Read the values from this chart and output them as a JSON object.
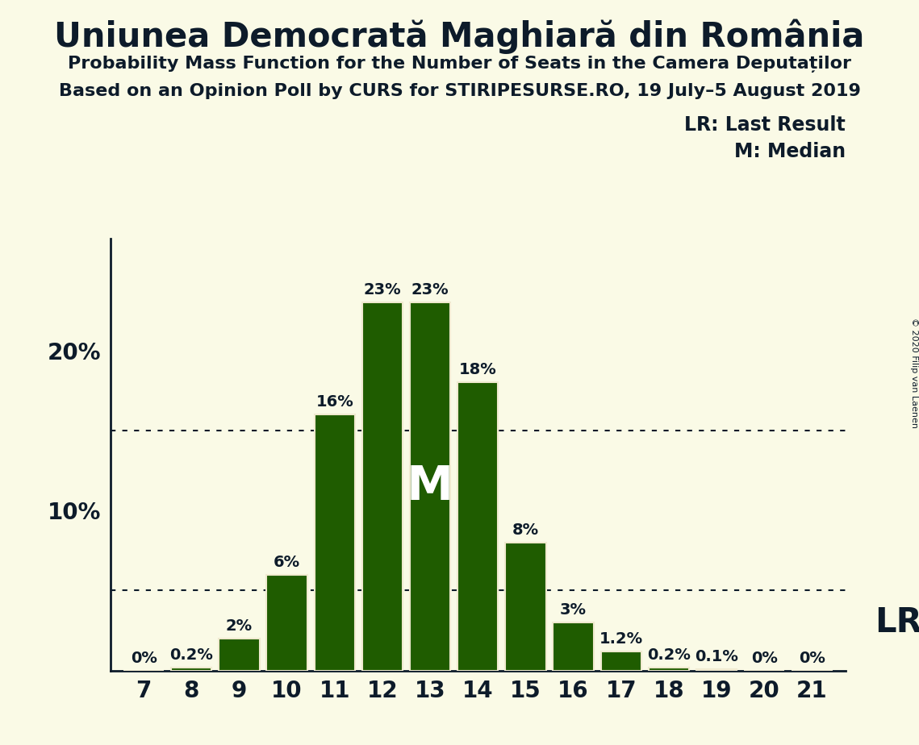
{
  "title": "Uniunea Democrată Maghiară din România",
  "subtitle1": "Probability Mass Function for the Number of Seats in the Camera Deputaților",
  "subtitle2": "Based on an Opinion Poll by CURS for STIRIPESURSE.RO, 19 July–5 August 2019",
  "copyright": "© 2020 Filip van Laenen",
  "seats": [
    7,
    8,
    9,
    10,
    11,
    12,
    13,
    14,
    15,
    16,
    17,
    18,
    19,
    20,
    21
  ],
  "probabilities": [
    0.0,
    0.2,
    2.0,
    6.0,
    16.0,
    23.0,
    23.0,
    18.0,
    8.0,
    3.0,
    1.2,
    0.2,
    0.1,
    0.0,
    0.0
  ],
  "bar_color": "#1f5c00",
  "bar_edge_color": "#f0ead0",
  "background_color": "#fafae6",
  "text_color": "#0d1b2a",
  "median_seat": 13,
  "median_label": "M",
  "lr_seat": 17,
  "lr_label": "LR",
  "legend_lr": "LR: Last Result",
  "legend_m": "M: Median",
  "yticks": [
    10,
    20
  ],
  "dotted_lines": [
    5,
    15
  ],
  "ylim": [
    0,
    27
  ],
  "bar_width": 0.85,
  "label_fontsize": 14,
  "title_fontsize": 30,
  "subtitle_fontsize": 16,
  "tick_fontsize": 20
}
